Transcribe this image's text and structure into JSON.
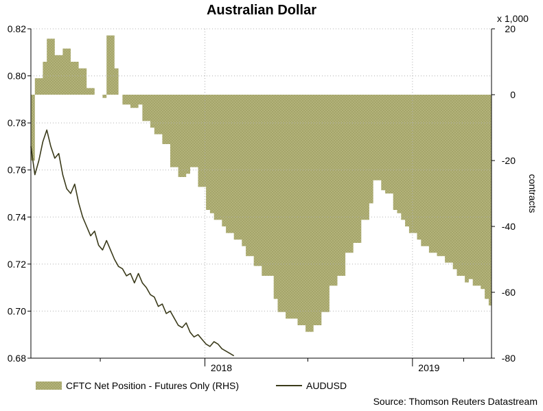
{
  "chart_data": {
    "type": "line",
    "title": "Australian Dollar",
    "left_axis": {
      "ylim": [
        0.68,
        0.82
      ],
      "ticks": [
        "0.82",
        "0.80",
        "0.78",
        "0.76",
        "0.74",
        "0.72",
        "0.70",
        "0.68"
      ]
    },
    "right_axis": {
      "label": "contracts",
      "multiplier": "x 1,000",
      "ylim": [
        -80,
        20
      ],
      "ticks": [
        "20",
        "0",
        "-20",
        "-40",
        "-60",
        "-80"
      ]
    },
    "x_axis": {
      "range": [
        "2017-03",
        "2019-05"
      ],
      "ticks": [
        "2018",
        "2019"
      ],
      "year_boundaries": [
        "2018-01-01",
        "2019-01-01"
      ],
      "year_tick_label_positions": [
        "2018-01-30",
        "2019-01-30"
      ],
      "minor_ticks_months": [
        "2017-07",
        "2018-07",
        "2019-04"
      ]
    },
    "grid": true,
    "series": [
      {
        "name": "CFTC Net Position - Futures Only (RHS)",
        "axis": "right",
        "kind": "area",
        "color": "#a8a86a",
        "points": [
          [
            "2017-03-01",
            -20
          ],
          [
            "2017-03-08",
            5
          ],
          [
            "2017-03-22",
            10
          ],
          [
            "2017-03-29",
            17
          ],
          [
            "2017-04-12",
            12
          ],
          [
            "2017-04-26",
            14
          ],
          [
            "2017-05-10",
            10
          ],
          [
            "2017-05-24",
            8
          ],
          [
            "2017-06-07",
            2
          ],
          [
            "2017-06-21",
            0
          ],
          [
            "2017-07-05",
            -1
          ],
          [
            "2017-07-12",
            18
          ],
          [
            "2017-07-26",
            8
          ],
          [
            "2017-08-02",
            0
          ],
          [
            "2017-08-09",
            -3
          ],
          [
            "2017-08-23",
            -4
          ],
          [
            "2017-09-06",
            -3
          ],
          [
            "2017-09-13",
            -8
          ],
          [
            "2017-09-27",
            -10
          ],
          [
            "2017-10-04",
            -12
          ],
          [
            "2017-10-18",
            -15
          ],
          [
            "2017-11-01",
            -22
          ],
          [
            "2017-11-15",
            -25
          ],
          [
            "2017-11-29",
            -24
          ],
          [
            "2017-12-06",
            -22
          ],
          [
            "2017-12-13",
            -22
          ],
          [
            "2017-12-20",
            -28
          ],
          [
            "2018-01-03",
            -35
          ],
          [
            "2018-01-10",
            -36
          ],
          [
            "2018-01-17",
            -38
          ],
          [
            "2018-01-31",
            -40
          ],
          [
            "2018-02-07",
            -42
          ],
          [
            "2018-02-21",
            -44
          ],
          [
            "2018-03-07",
            -46
          ],
          [
            "2018-03-14",
            -49
          ],
          [
            "2018-03-28",
            -52
          ],
          [
            "2018-04-11",
            -55
          ],
          [
            "2018-04-25",
            -55
          ],
          [
            "2018-05-02",
            -62
          ],
          [
            "2018-05-09",
            -66
          ],
          [
            "2018-05-23",
            -68
          ],
          [
            "2018-06-06",
            -68
          ],
          [
            "2018-06-13",
            -70
          ],
          [
            "2018-06-27",
            -72
          ],
          [
            "2018-07-11",
            -70
          ],
          [
            "2018-07-25",
            -66
          ],
          [
            "2018-08-08",
            -58
          ],
          [
            "2018-08-22",
            -55
          ],
          [
            "2018-09-05",
            -48
          ],
          [
            "2018-09-19",
            -45
          ],
          [
            "2018-10-03",
            -38
          ],
          [
            "2018-10-17",
            -33
          ],
          [
            "2018-10-24",
            -26
          ],
          [
            "2018-11-07",
            -29
          ],
          [
            "2018-11-14",
            -30
          ],
          [
            "2018-11-28",
            -35
          ],
          [
            "2018-12-05",
            -36
          ],
          [
            "2018-12-12",
            -38
          ],
          [
            "2018-12-19",
            -40
          ],
          [
            "2018-12-26",
            -42
          ],
          [
            "2019-01-09",
            -44
          ],
          [
            "2019-01-16",
            -46
          ],
          [
            "2019-01-30",
            -48
          ],
          [
            "2019-02-13",
            -49
          ],
          [
            "2019-02-27",
            -51
          ],
          [
            "2019-03-13",
            -53
          ],
          [
            "2019-03-20",
            -55
          ],
          [
            "2019-04-03",
            -57
          ],
          [
            "2019-04-10",
            -56
          ],
          [
            "2019-04-17",
            -58
          ],
          [
            "2019-05-01",
            -59
          ],
          [
            "2019-05-08",
            -62
          ],
          [
            "2019-05-15",
            -64
          ]
        ]
      },
      {
        "name": "AUDUSD",
        "axis": "left",
        "kind": "line",
        "color": "#3a3a1a",
        "points": [
          [
            "2017-03-01",
            0.77
          ],
          [
            "2017-03-08",
            0.758
          ],
          [
            "2017-03-15",
            0.764
          ],
          [
            "2017-03-22",
            0.772
          ],
          [
            "2017-03-29",
            0.777
          ],
          [
            "2017-04-05",
            0.77
          ],
          [
            "2017-04-12",
            0.765
          ],
          [
            "2017-04-19",
            0.767
          ],
          [
            "2017-04-26",
            0.758
          ],
          [
            "2017-05-03",
            0.752
          ],
          [
            "2017-05-10",
            0.75
          ],
          [
            "2017-05-17",
            0.754
          ],
          [
            "2017-05-24",
            0.746
          ],
          [
            "2017-05-31",
            0.74
          ],
          [
            "2017-06-07",
            0.736
          ],
          [
            "2017-06-14",
            0.732
          ],
          [
            "2017-06-21",
            0.734
          ],
          [
            "2017-06-28",
            0.728
          ],
          [
            "2017-07-05",
            0.726
          ],
          [
            "2017-07-12",
            0.73
          ],
          [
            "2017-07-19",
            0.726
          ],
          [
            "2017-07-26",
            0.722
          ],
          [
            "2017-08-02",
            0.719
          ],
          [
            "2017-08-09",
            0.718
          ],
          [
            "2017-08-16",
            0.715
          ],
          [
            "2017-08-23",
            0.716
          ],
          [
            "2017-08-30",
            0.712
          ],
          [
            "2017-09-06",
            0.716
          ],
          [
            "2017-09-13",
            0.712
          ],
          [
            "2017-09-20",
            0.71
          ],
          [
            "2017-09-27",
            0.707
          ],
          [
            "2017-10-04",
            0.706
          ],
          [
            "2017-10-11",
            0.702
          ],
          [
            "2017-10-18",
            0.703
          ],
          [
            "2017-10-25",
            0.699
          ],
          [
            "2017-11-01",
            0.7
          ],
          [
            "2017-11-08",
            0.697
          ],
          [
            "2017-11-15",
            0.694
          ],
          [
            "2017-11-22",
            0.693
          ],
          [
            "2017-11-29",
            0.695
          ],
          [
            "2017-12-06",
            0.691
          ],
          [
            "2017-12-13",
            0.689
          ],
          [
            "2017-12-20",
            0.69
          ],
          [
            "2017-12-27",
            0.688
          ],
          [
            "2018-01-03",
            0.686
          ],
          [
            "2018-01-10",
            0.685
          ],
          [
            "2018-01-17",
            0.687
          ],
          [
            "2018-01-24",
            0.686
          ],
          [
            "2018-01-31",
            0.684
          ],
          [
            "2018-02-07",
            0.683
          ],
          [
            "2018-02-14",
            0.682
          ],
          [
            "2018-02-21",
            0.681
          ]
        ]
      }
    ],
    "legend": {
      "position": "bottom",
      "entries": [
        "CFTC Net Position - Futures Only (RHS)",
        "AUDUSD"
      ]
    },
    "source": "Source: Thomson Reuters Datastream"
  }
}
